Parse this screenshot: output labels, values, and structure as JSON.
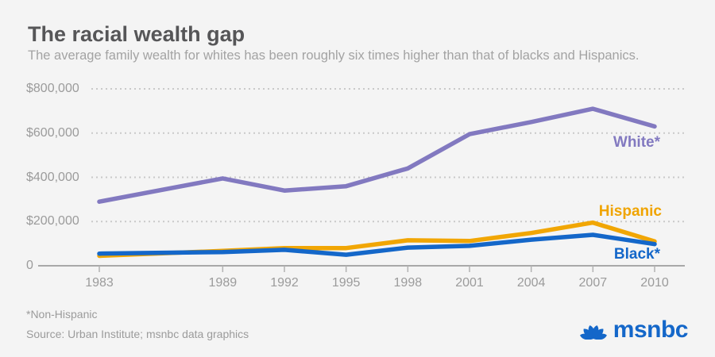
{
  "page": {
    "background": "#f4f4f4"
  },
  "header": {
    "title": "The racial wealth gap",
    "subtitle": "The average family wealth for whites has been roughly six times higher than that of blacks and Hispanics."
  },
  "chart_data": {
    "type": "line",
    "title": "The racial wealth gap",
    "x": [
      1983,
      1989,
      1992,
      1995,
      1998,
      2001,
      2004,
      2007,
      2010
    ],
    "x_tick_labels": [
      "1983",
      "1989",
      "1992",
      "1995",
      "1998",
      "2001",
      "2004",
      "2007",
      "2010"
    ],
    "y_axis": {
      "range": [
        0,
        800000
      ],
      "ticks": [
        0,
        200000,
        400000,
        600000,
        800000
      ],
      "tick_labels": [
        "0",
        "$200,000",
        "$400,000",
        "$600,000",
        "$800,000"
      ]
    },
    "grid": "dotted-horizontal",
    "legend_position": "inline-right",
    "series": [
      {
        "name": "Hispanic",
        "label": "Hispanic",
        "color": "#f1a604",
        "values": [
          45000,
          67000,
          80000,
          80000,
          115000,
          112000,
          148000,
          195000,
          110000
        ]
      },
      {
        "name": "Black",
        "label": "Black*",
        "color": "#1467c9",
        "values": [
          55000,
          62000,
          72000,
          50000,
          82000,
          90000,
          118000,
          140000,
          98000
        ]
      },
      {
        "name": "White",
        "label": "White*",
        "color": "#8279c0",
        "values": [
          290000,
          395000,
          340000,
          360000,
          440000,
          595000,
          650000,
          710000,
          630000
        ]
      }
    ],
    "axis_colors": {
      "gridline": "#c9c9c9",
      "zero_line": "#a8a8a8",
      "tick": "#b3b3b3"
    }
  },
  "footnotes": {
    "note": "*Non-Hispanic",
    "source": "Source: Urban Institute; msnbc data graphics"
  },
  "logo": {
    "text": "msnbc",
    "color": "#1467c9",
    "icon": "peacock-icon"
  }
}
